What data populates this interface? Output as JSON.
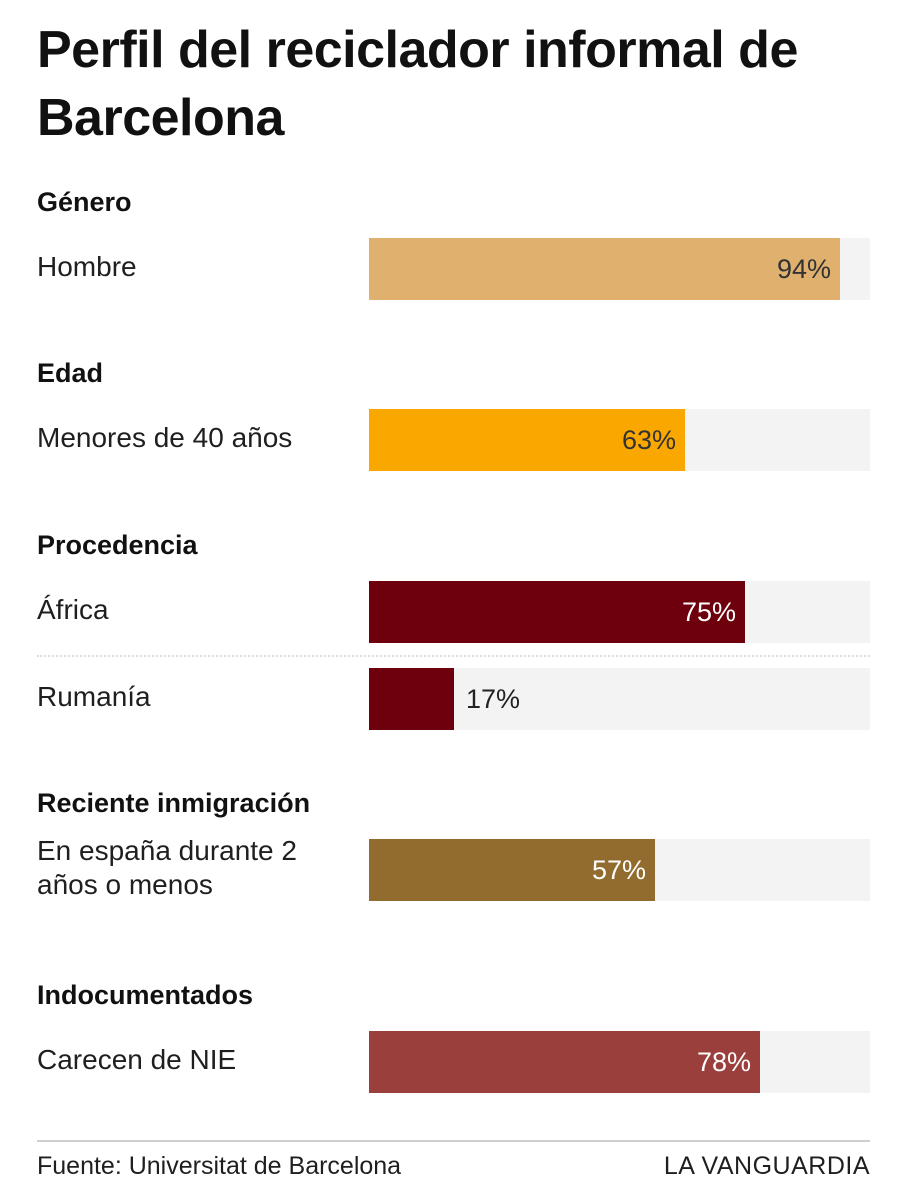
{
  "chart_data": {
    "type": "bar",
    "orientation": "horizontal",
    "title": "Perfil del reciclador informal de Barcelona",
    "unit": "%",
    "xlim": [
      0,
      100
    ],
    "groups": [
      {
        "title": "Género",
        "items": [
          {
            "label": "Hombre",
            "value": 94,
            "color": "#e0b06f",
            "text_color": "#333333"
          }
        ]
      },
      {
        "title": "Edad",
        "items": [
          {
            "label": "Menores de 40 años",
            "value": 63,
            "color": "#faa800",
            "text_color": "#333333"
          }
        ]
      },
      {
        "title": "Procedencia",
        "items": [
          {
            "label": "África",
            "value": 75,
            "color": "#6d000c",
            "text_color": "#ffffff"
          },
          {
            "label": "Rumanía",
            "value": 17,
            "color": "#6d000c",
            "text_color": "#222222"
          }
        ]
      },
      {
        "title": "Reciente inmigración",
        "items": [
          {
            "label": "En españa durante 2 años o menos",
            "value": 57,
            "color": "#916c2e",
            "text_color": "#ffffff"
          }
        ]
      },
      {
        "title": "Indocumentados",
        "items": [
          {
            "label": "Carecen de NIE",
            "value": 78,
            "color": "#9a3f3b",
            "text_color": "#ffffff"
          }
        ]
      }
    ]
  },
  "footer": {
    "source": "Fuente: Universitat de Barcelona",
    "brand": "LA VANGUARDIA"
  }
}
